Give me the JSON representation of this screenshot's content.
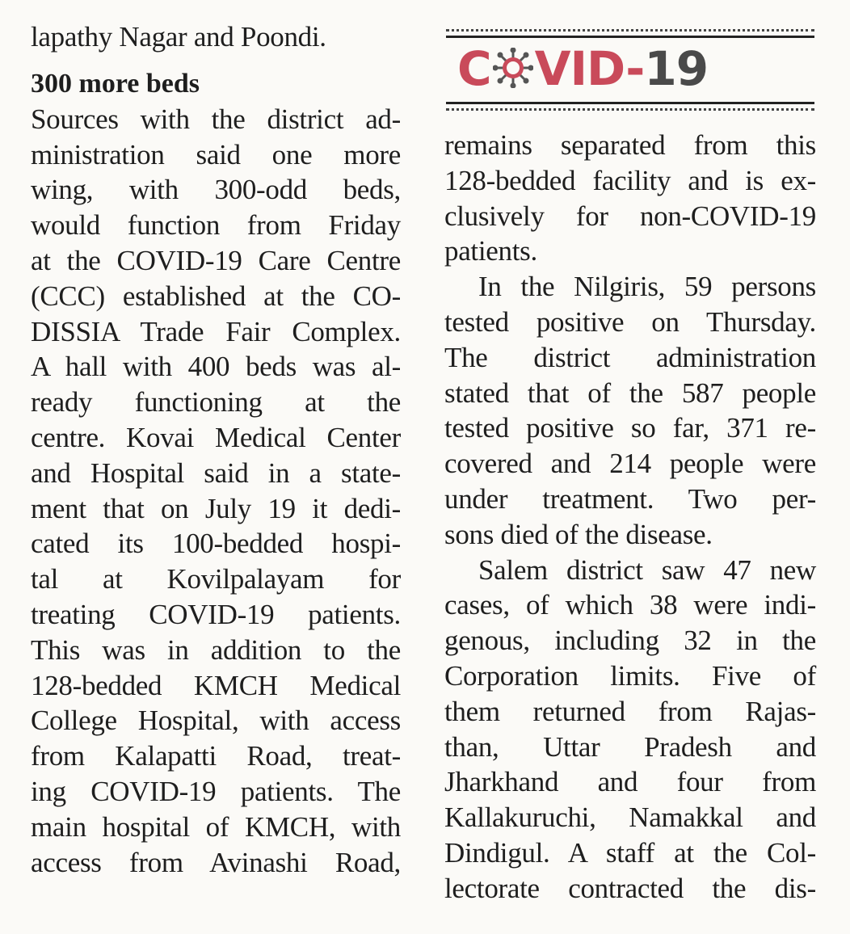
{
  "logo": {
    "prefix": "C",
    "suffix_red": "VID-",
    "suffix_grey": "19",
    "colors": {
      "red": "#c94a5a",
      "grey": "#4a4a4a"
    },
    "icon": "virus-icon"
  },
  "left_column": {
    "lead_line": "lapathy Nagar and Poondi.",
    "heading": "300 more beds",
    "lines": [
      "Sources with the district ad-",
      "ministration said one more",
      "wing, with 300-odd beds,",
      "would function from Friday",
      "at the COVID-19 Care Centre",
      "(CCC) established at the CO-",
      "DISSIA Trade Fair Complex.",
      "A hall with 400 beds was al-",
      "ready functioning at the",
      "centre. Kovai Medical Center",
      "and Hospital said in a state-",
      "ment that on July 19 it dedi-",
      "cated its 100-bedded hospi-",
      "tal at Kovilpalayam for",
      "treating COVID-19 patients.",
      "This was in addition to the",
      "128-bedded KMCH Medical",
      "College Hospital, with access",
      "from Kalapatti Road, treat-",
      "ing COVID-19 patients. The",
      "main hospital of KMCH, with",
      "access from Avinashi Road,"
    ]
  },
  "right_column": {
    "lines": [
      "remains separated from this",
      "128-bedded facility and is ex-",
      "clusively for non-COVID-19",
      "patients.",
      "In the Nilgiris, 59 persons",
      "tested positive on Thursday.",
      "The district administration",
      "stated that of the 587 people",
      "tested positive so far, 371 re-",
      "covered and 214 people were",
      "under treatment. Two per-",
      "sons died of the disease.",
      "Salem district saw 47 new",
      "cases, of which 38 were indi-",
      "genous, including 32 in the",
      "Corporation limits. Five of",
      "them returned from Rajas-",
      "than, Uttar Pradesh and",
      "Jharkhand and four from",
      "Kallakuruchi, Namakkal and",
      "Dindigul. A staff at the Col-",
      "lectorate contracted the dis-"
    ]
  }
}
